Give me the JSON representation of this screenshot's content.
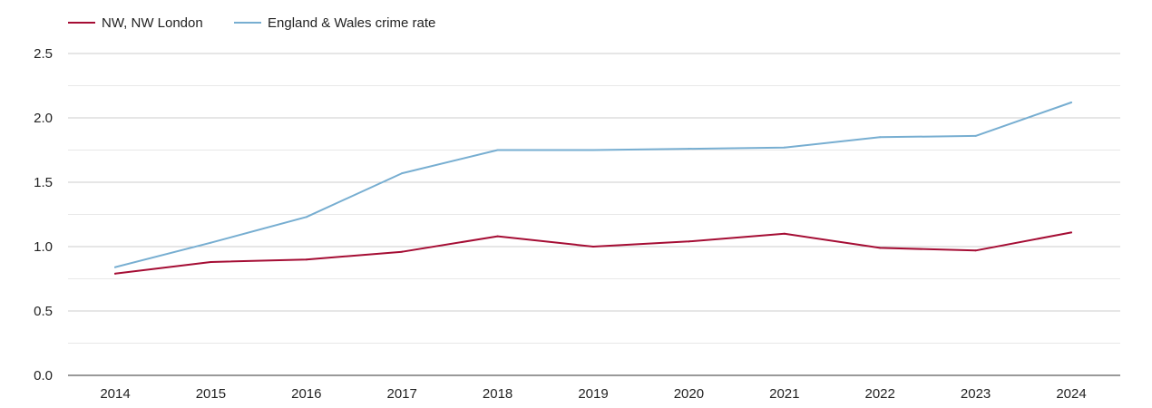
{
  "chart_data": {
    "type": "line",
    "title": "",
    "xlabel": "",
    "ylabel": "",
    "x": [
      "2014",
      "2015",
      "2016",
      "2017",
      "2018",
      "2019",
      "2020",
      "2021",
      "2022",
      "2023",
      "2024"
    ],
    "ylim": [
      0,
      2.5
    ],
    "yticks": [
      "0.0",
      "0.5",
      "1.0",
      "1.5",
      "2.0",
      "2.5"
    ],
    "grid": true,
    "legend_position": "top-left",
    "series": [
      {
        "name": "NW, NW London",
        "color": "#a50d34",
        "values": [
          0.79,
          0.88,
          0.9,
          0.96,
          1.08,
          1.0,
          1.04,
          1.1,
          0.99,
          0.97,
          1.11
        ]
      },
      {
        "name": "England & Wales crime rate",
        "color": "#77aed1",
        "values": [
          0.84,
          1.03,
          1.23,
          1.57,
          1.75,
          1.75,
          1.76,
          1.77,
          1.85,
          1.86,
          2.12
        ]
      }
    ]
  }
}
